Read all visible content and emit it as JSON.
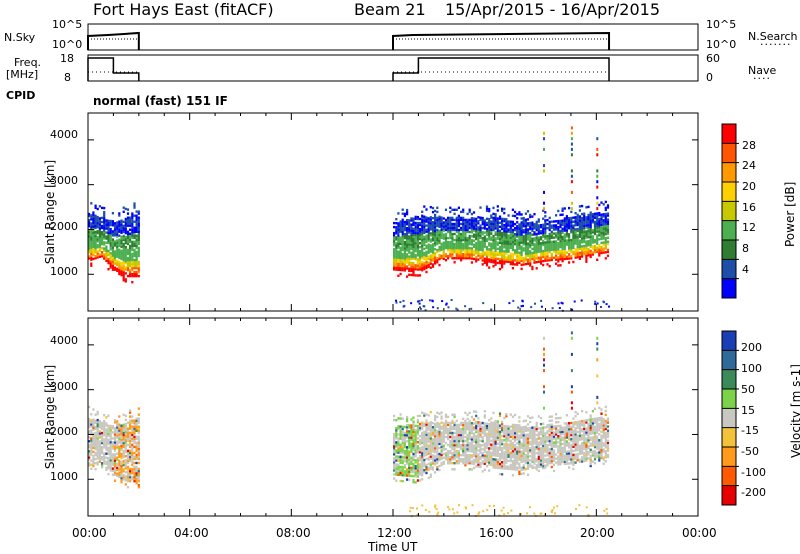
{
  "header": {
    "radar_title": "Fort Hays East (fitACF)",
    "beam": "Beam 21",
    "date_range": "15/Apr/2015 - 16/Apr/2015"
  },
  "sky_panel": {
    "left_label": "N.Sky",
    "left_ticks": [
      "10^5",
      "10^0"
    ],
    "right_ticks": [
      "10^5",
      "10^0"
    ],
    "right_label": "N.Search"
  },
  "freq_panel": {
    "left_label_line1": "Freq.",
    "left_label_line2": "[MHz]",
    "left_ticks": [
      "18",
      "8"
    ],
    "right_ticks": [
      "60",
      "0"
    ],
    "right_label": "Nave"
  },
  "cpid": {
    "label": "CPID",
    "program": "normal (fast) 151 IF"
  },
  "power_panel": {
    "ylabel": "Slant Range [km]",
    "yticks": [
      "4000",
      "3000",
      "2000",
      "1000"
    ],
    "colorbar_label": "Power [dB]",
    "colorbar_ticks": [
      "28",
      "24",
      "20",
      "16",
      "12",
      "8",
      "4"
    ],
    "colors": [
      "#0000ff",
      "#1d4fa8",
      "#2e7d32",
      "#4caf50",
      "#c8c800",
      "#ffd000",
      "#ff9900",
      "#ff5500",
      "#ff0000"
    ]
  },
  "velocity_panel": {
    "ylabel": "Slant Range [km]",
    "yticks": [
      "4000",
      "3000",
      "2000",
      "1000"
    ],
    "colorbar_label": "Velocity [m s-1]",
    "colorbar_ticks": [
      "200",
      "100",
      "50",
      "15",
      "-15",
      "-50",
      "-100",
      "-200"
    ],
    "colors": [
      "#1a3fb5",
      "#2f6b9a",
      "#3a8a5a",
      "#7bd34a",
      "#c8c8c0",
      "#f2c23a",
      "#ff9a1a",
      "#ff5a00",
      "#e60000"
    ]
  },
  "time_axis": {
    "label": "Time UT",
    "ticks": [
      "00:00",
      "04:00",
      "08:00",
      "12:00",
      "16:00",
      "20:00",
      "00:00"
    ]
  },
  "chart_data": {
    "type": "heatmap",
    "x_unit": "hours UT",
    "xlim": [
      0,
      24
    ],
    "ylim_km": [
      180,
      4600
    ],
    "intervals_with_data": [
      [
        0.0,
        2.0
      ],
      [
        12.0,
        20.5
      ]
    ],
    "power_band": [
      {
        "t": 0.0,
        "center_km": 1700,
        "top_km": 2400,
        "bottom_km": 1300
      },
      {
        "t": 0.5,
        "center_km": 1800,
        "top_km": 2300,
        "bottom_km": 1400
      },
      {
        "t": 1.0,
        "center_km": 1550,
        "top_km": 2200,
        "bottom_km": 1100
      },
      {
        "t": 1.5,
        "center_km": 1300,
        "top_km": 2300,
        "bottom_km": 950
      },
      {
        "t": 2.0,
        "center_km": 1250,
        "top_km": 2400,
        "bottom_km": 950
      },
      {
        "t": 12.0,
        "center_km": 1500,
        "top_km": 2200,
        "bottom_km": 1100
      },
      {
        "t": 13.0,
        "center_km": 1400,
        "top_km": 2300,
        "bottom_km": 1050
      },
      {
        "t": 14.0,
        "center_km": 1650,
        "top_km": 2300,
        "bottom_km": 1350
      },
      {
        "t": 15.0,
        "center_km": 1600,
        "top_km": 2300,
        "bottom_km": 1350
      },
      {
        "t": 16.0,
        "center_km": 1500,
        "top_km": 2300,
        "bottom_km": 1250
      },
      {
        "t": 17.0,
        "center_km": 1450,
        "top_km": 2200,
        "bottom_km": 1200
      },
      {
        "t": 18.0,
        "center_km": 1550,
        "top_km": 2200,
        "bottom_km": 1300
      },
      {
        "t": 19.0,
        "center_km": 1600,
        "top_km": 2300,
        "bottom_km": 1350
      },
      {
        "t": 20.0,
        "center_km": 1700,
        "top_km": 2400,
        "bottom_km": 1450
      },
      {
        "t": 20.5,
        "center_km": 1700,
        "top_km": 2400,
        "bottom_km": 1500
      }
    ],
    "freq_mhz_trace": [
      [
        0.0,
        18
      ],
      [
        1.0,
        18
      ],
      [
        1.0,
        10.5
      ],
      [
        2.0,
        10.5
      ],
      [
        12.0,
        10.5
      ],
      [
        13.0,
        10.5
      ],
      [
        13.0,
        18
      ],
      [
        20.5,
        18
      ]
    ],
    "nave_trace": [
      [
        0.0,
        35
      ],
      [
        2.0,
        35
      ],
      [
        12.0,
        35
      ],
      [
        20.5,
        35
      ]
    ]
  }
}
